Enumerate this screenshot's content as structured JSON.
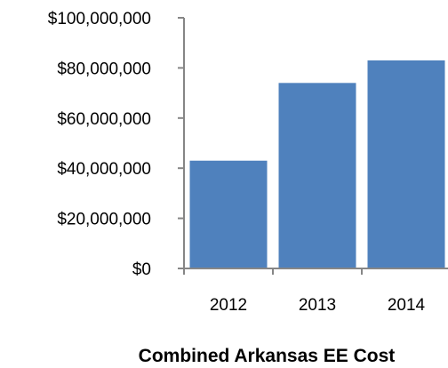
{
  "chart_data": {
    "type": "bar",
    "categories": [
      "2012",
      "2013",
      "2014"
    ],
    "values": [
      43000000,
      74000000,
      83000000
    ],
    "title": "",
    "xlabel": "Combined Arkansas EE Cost",
    "ylabel": "",
    "ylim": [
      0,
      100000000
    ],
    "yticks": [
      0,
      20000000,
      40000000,
      60000000,
      80000000,
      100000000
    ],
    "ytick_labels": [
      "$0",
      "$20,000,000",
      "$40,000,000",
      "$60,000,000",
      "$80,000,000",
      "$100,000,000"
    ],
    "grid": false,
    "legend": "none",
    "colors": {
      "bar": "#4F81BD",
      "axis": "#868686"
    }
  }
}
